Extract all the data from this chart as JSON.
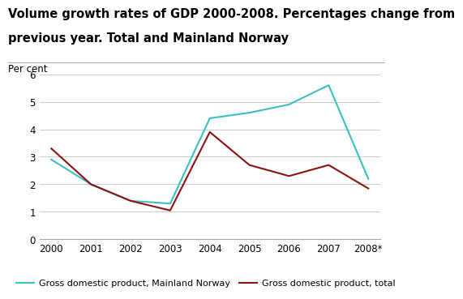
{
  "title_line1": "Volume growth rates of GDP 2000-2008. Percentages change from",
  "title_line2": "previous year. Total and Mainland Norway",
  "ylabel": "Per cent",
  "years": [
    2000,
    2001,
    2002,
    2003,
    2004,
    2005,
    2006,
    2007,
    2008
  ],
  "xlabels": [
    "2000",
    "2001",
    "2002",
    "2003",
    "2004",
    "2005",
    "2006",
    "2007",
    "2008*"
  ],
  "mainland_norway": [
    2.9,
    2.0,
    1.4,
    1.3,
    4.4,
    4.6,
    4.9,
    5.6,
    2.2
  ],
  "gdp_total": [
    3.3,
    2.0,
    1.4,
    1.05,
    3.9,
    2.7,
    2.3,
    2.7,
    1.85
  ],
  "mainland_color": "#3DBFBF",
  "total_color": "#8B1010",
  "mainland_label": "Gross domestic product, Mainland Norway",
  "total_label": "Gross domestic product, total",
  "ylim": [
    0,
    6
  ],
  "yticks": [
    0,
    1,
    2,
    3,
    4,
    5,
    6
  ],
  "background_color": "#ffffff",
  "grid_color": "#cccccc",
  "title_fontsize": 10.5,
  "label_fontsize": 8.5,
  "tick_fontsize": 8.5,
  "legend_fontsize": 8.0
}
